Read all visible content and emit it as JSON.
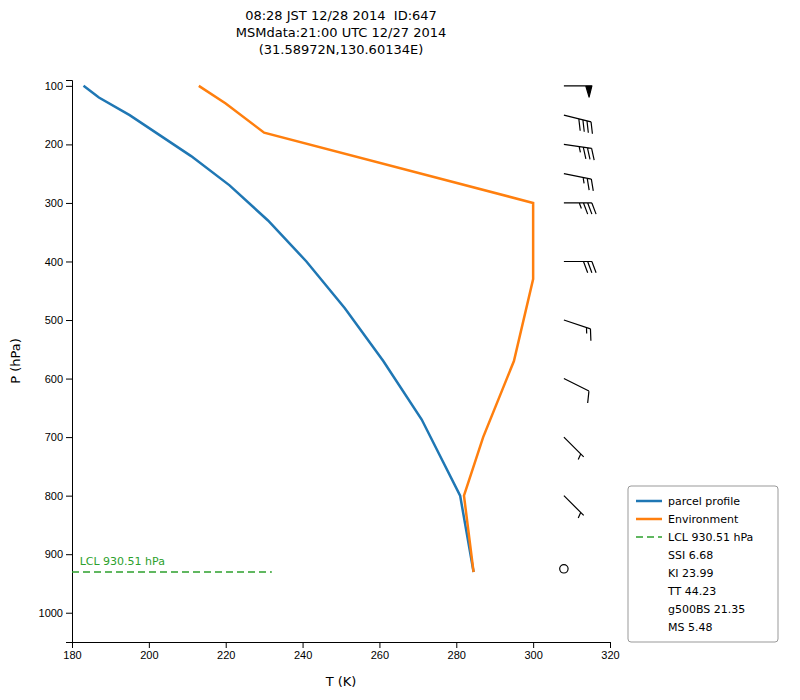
{
  "chart_data": {
    "type": "line",
    "title": "08:28 JST 12/28 2014  ID:647\nMSMdata:21:00 UTC 12/27 2014\n(31.58972N,130.60134E)",
    "x_label": "T (K)",
    "y_label": "P (hPa)",
    "xlim": [
      180,
      320
    ],
    "ylim": [
      1050,
      90
    ],
    "xticks": [
      180,
      200,
      220,
      240,
      260,
      280,
      300,
      320
    ],
    "yticks": [
      100,
      200,
      300,
      400,
      500,
      600,
      700,
      800,
      900,
      1000
    ],
    "grid": false,
    "legend": "lower right",
    "series": [
      {
        "name": "parcel profile",
        "color": "#1f77b4",
        "line_style": "solid",
        "x": [
          183.0,
          187.0,
          195.0,
          203.0,
          211.0,
          221.0,
          231.0,
          241.0,
          251.0,
          261.0,
          271.0,
          281.0,
          284.5
        ],
        "values": [
          100,
          120,
          150,
          185,
          220,
          270,
          330,
          400,
          480,
          570,
          670,
          800,
          930.51
        ]
      },
      {
        "name": "Environment",
        "color": "#ff7f0e",
        "line_style": "solid",
        "x": [
          213.0,
          220.0,
          230.0,
          300.0,
          300.0,
          295.0,
          287.0,
          282.0,
          284.5
        ],
        "values": [
          100,
          130,
          180,
          300,
          430,
          570,
          700,
          800,
          930.51
        ]
      },
      {
        "name": "LCL 930.51 hPa",
        "color": "#2ca02c",
        "line_style": "dashed",
        "x": [
          180,
          232
        ],
        "values": [
          930.51,
          930.51
        ]
      }
    ],
    "legend_texts": [
      "SSI 6.68",
      "KI 23.99",
      "TT 44.23",
      "g500BS 21.35",
      "MS 5.48"
    ],
    "annotations": [
      {
        "text": "LCL 930.51 hPa",
        "x": 182,
        "y": 918.51,
        "color": "#2ca02c"
      }
    ],
    "wind_barbs": {
      "x": 308,
      "pressure": [
        100,
        150,
        200,
        250,
        300,
        400,
        500,
        600,
        700,
        800,
        925
      ],
      "u": [
        -50,
        -40,
        -35,
        -25,
        -35,
        -30,
        -15,
        -10,
        -5,
        -5,
        0
      ],
      "v": [
        0,
        10,
        5,
        5,
        0,
        0,
        5,
        5,
        5,
        5,
        0
      ],
      "color": "black"
    }
  }
}
